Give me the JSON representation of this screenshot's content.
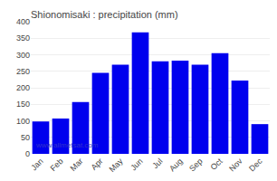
{
  "chart_data": {
    "type": "bar",
    "title": "Shionomisaki : precipitation (mm)",
    "categories": [
      "Jan",
      "Feb",
      "Mar",
      "Apr",
      "May",
      "Jun",
      "Jul",
      "Aug",
      "Sep",
      "Oct",
      "Nov",
      "Dec"
    ],
    "values": [
      98,
      107,
      157,
      245,
      270,
      368,
      280,
      282,
      270,
      305,
      222,
      90
    ],
    "color": "#0000ee",
    "ylim": [
      0,
      400
    ],
    "yticks": [
      0,
      50,
      100,
      150,
      200,
      250,
      300,
      350,
      400
    ],
    "grid": true,
    "annotations": [
      {
        "text": "www.allmetsat.com",
        "color": "#3333cc"
      }
    ]
  }
}
